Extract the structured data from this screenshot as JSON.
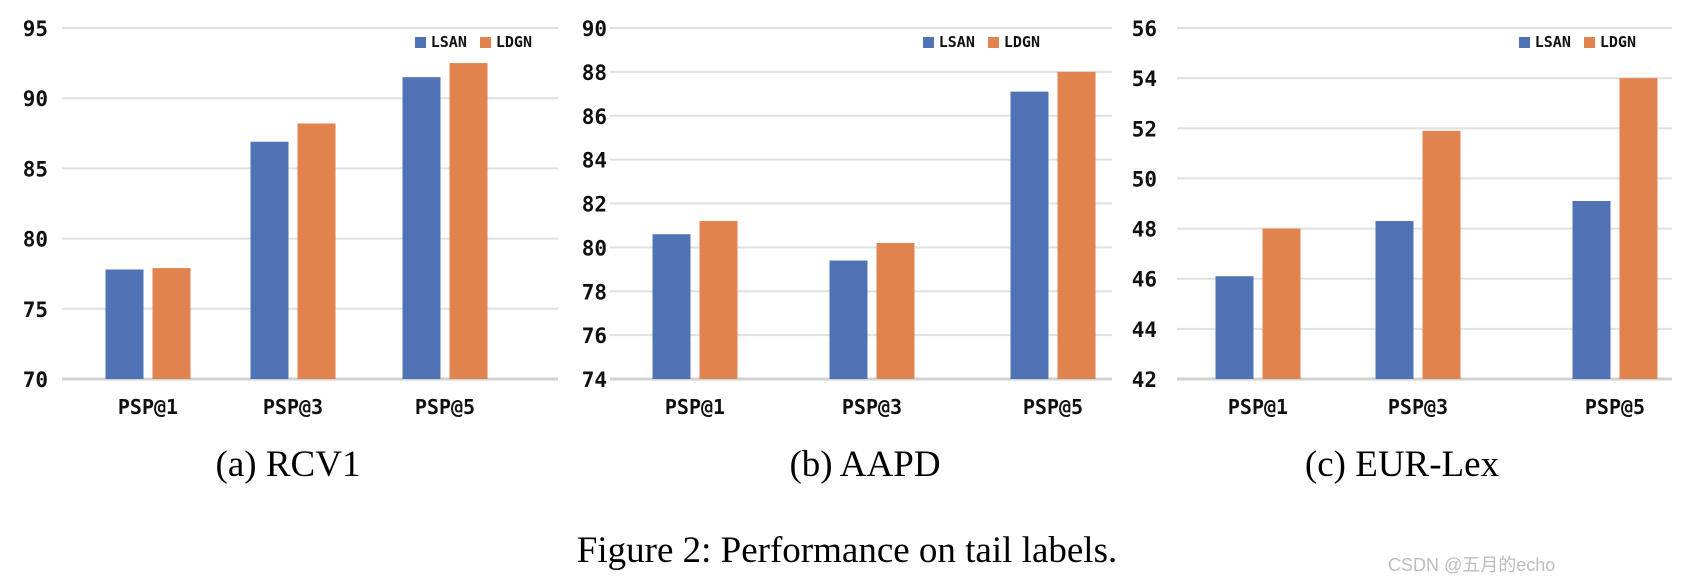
{
  "figure": {
    "caption": "Figure 2: Performance on tail labels.",
    "watermark": "CSDN @五月的echo"
  },
  "colors": {
    "lsan": "#4f73b5",
    "ldgn": "#e0834f",
    "gridline": "#e0e0e0",
    "axis_line": "#d2d2d2"
  },
  "chart_data": [
    {
      "type": "bar",
      "title": "(a) RCV1",
      "categories": [
        "PSP@1",
        "PSP@3",
        "PSP@5"
      ],
      "series": [
        {
          "name": "LSAN",
          "color": "#4f73b5",
          "values": [
            77.8,
            86.9,
            91.5
          ]
        },
        {
          "name": "LDGN",
          "color": "#e0834f",
          "values": [
            77.9,
            88.2,
            92.5
          ]
        }
      ],
      "ylim": [
        70,
        95
      ],
      "yticks": [
        70,
        75,
        80,
        85,
        90,
        95
      ],
      "xlabel": "",
      "ylabel": "",
      "grid": true,
      "legend_position": "top-right"
    },
    {
      "type": "bar",
      "title": "(b) AAPD",
      "categories": [
        "PSP@1",
        "PSP@3",
        "PSP@5"
      ],
      "series": [
        {
          "name": "LSAN",
          "color": "#4f73b5",
          "values": [
            80.6,
            79.4,
            87.1
          ]
        },
        {
          "name": "LDGN",
          "color": "#e0834f",
          "values": [
            81.2,
            80.2,
            88.0
          ]
        }
      ],
      "ylim": [
        74,
        90
      ],
      "yticks": [
        74,
        76,
        78,
        80,
        82,
        84,
        86,
        88,
        90
      ],
      "xlabel": "",
      "ylabel": "",
      "grid": true,
      "legend_position": "top-right"
    },
    {
      "type": "bar",
      "title": "(c) EUR-Lex",
      "categories": [
        "PSP@1",
        "PSP@3",
        "PSP@5"
      ],
      "series": [
        {
          "name": "LSAN",
          "color": "#4f73b5",
          "values": [
            46.1,
            48.3,
            49.1
          ]
        },
        {
          "name": "LDGN",
          "color": "#e0834f",
          "values": [
            48.0,
            51.9,
            54.0
          ]
        }
      ],
      "ylim": [
        42,
        56
      ],
      "yticks": [
        42,
        44,
        46,
        48,
        50,
        52,
        54,
        56
      ],
      "xlabel": "",
      "ylabel": "",
      "grid": true,
      "legend_position": "top-right"
    }
  ]
}
